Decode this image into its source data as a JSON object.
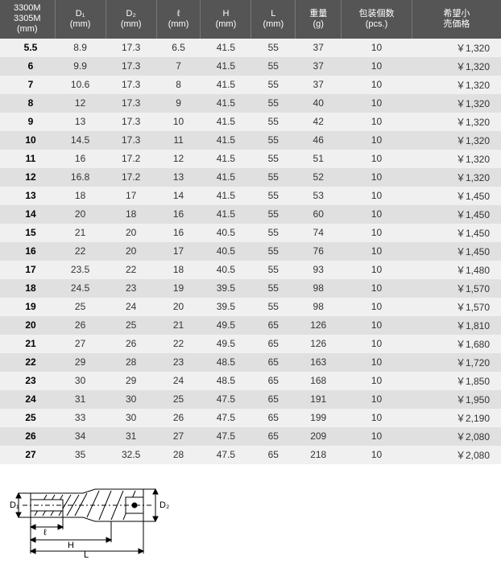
{
  "table": {
    "header_bg": "#555555",
    "header_text_color": "#ffffff",
    "row_odd_bg": "#f0f0f0",
    "row_even_bg": "#e0e0e0",
    "cell_text_color": "#333333",
    "size_text_color": "#000000",
    "columns": [
      {
        "label_line1": "3300M",
        "label_line2": "3305M",
        "label_line3": "(mm)"
      },
      {
        "label_line1": "D₁",
        "label_line2": "(mm)"
      },
      {
        "label_line1": "D₂",
        "label_line2": "(mm)"
      },
      {
        "label_line1": "ℓ",
        "label_line2": "(mm)"
      },
      {
        "label_line1": "H",
        "label_line2": "(mm)"
      },
      {
        "label_line1": "L",
        "label_line2": "(mm)"
      },
      {
        "label_line1": "重量",
        "label_line2": "(g)"
      },
      {
        "label_line1": "包装個数",
        "label_line2": "(pcs.)"
      },
      {
        "label_line1": "希望小",
        "label_line2": "売価格"
      }
    ],
    "rows": [
      {
        "size": "5.5",
        "d1": "8.9",
        "d2": "17.3",
        "l": "6.5",
        "h": "41.5",
        "L": "55",
        "weight": "37",
        "pcs": "10",
        "price": "￥1,320"
      },
      {
        "size": "6",
        "d1": "9.9",
        "d2": "17.3",
        "l": "7",
        "h": "41.5",
        "L": "55",
        "weight": "37",
        "pcs": "10",
        "price": "￥1,320"
      },
      {
        "size": "7",
        "d1": "10.6",
        "d2": "17.3",
        "l": "8",
        "h": "41.5",
        "L": "55",
        "weight": "37",
        "pcs": "10",
        "price": "￥1,320"
      },
      {
        "size": "8",
        "d1": "12",
        "d2": "17.3",
        "l": "9",
        "h": "41.5",
        "L": "55",
        "weight": "40",
        "pcs": "10",
        "price": "￥1,320"
      },
      {
        "size": "9",
        "d1": "13",
        "d2": "17.3",
        "l": "10",
        "h": "41.5",
        "L": "55",
        "weight": "42",
        "pcs": "10",
        "price": "￥1,320"
      },
      {
        "size": "10",
        "d1": "14.5",
        "d2": "17.3",
        "l": "11",
        "h": "41.5",
        "L": "55",
        "weight": "46",
        "pcs": "10",
        "price": "￥1,320"
      },
      {
        "size": "11",
        "d1": "16",
        "d2": "17.2",
        "l": "12",
        "h": "41.5",
        "L": "55",
        "weight": "51",
        "pcs": "10",
        "price": "￥1,320"
      },
      {
        "size": "12",
        "d1": "16.8",
        "d2": "17.2",
        "l": "13",
        "h": "41.5",
        "L": "55",
        "weight": "52",
        "pcs": "10",
        "price": "￥1,320"
      },
      {
        "size": "13",
        "d1": "18",
        "d2": "17",
        "l": "14",
        "h": "41.5",
        "L": "55",
        "weight": "53",
        "pcs": "10",
        "price": "￥1,450"
      },
      {
        "size": "14",
        "d1": "20",
        "d2": "18",
        "l": "16",
        "h": "41.5",
        "L": "55",
        "weight": "60",
        "pcs": "10",
        "price": "￥1,450"
      },
      {
        "size": "15",
        "d1": "21",
        "d2": "20",
        "l": "16",
        "h": "40.5",
        "L": "55",
        "weight": "74",
        "pcs": "10",
        "price": "￥1,450"
      },
      {
        "size": "16",
        "d1": "22",
        "d2": "20",
        "l": "17",
        "h": "40.5",
        "L": "55",
        "weight": "76",
        "pcs": "10",
        "price": "￥1,450"
      },
      {
        "size": "17",
        "d1": "23.5",
        "d2": "22",
        "l": "18",
        "h": "40.5",
        "L": "55",
        "weight": "93",
        "pcs": "10",
        "price": "￥1,480"
      },
      {
        "size": "18",
        "d1": "24.5",
        "d2": "23",
        "l": "19",
        "h": "39.5",
        "L": "55",
        "weight": "98",
        "pcs": "10",
        "price": "￥1,570"
      },
      {
        "size": "19",
        "d1": "25",
        "d2": "24",
        "l": "20",
        "h": "39.5",
        "L": "55",
        "weight": "98",
        "pcs": "10",
        "price": "￥1,570"
      },
      {
        "size": "20",
        "d1": "26",
        "d2": "25",
        "l": "21",
        "h": "49.5",
        "L": "65",
        "weight": "126",
        "pcs": "10",
        "price": "￥1,810"
      },
      {
        "size": "21",
        "d1": "27",
        "d2": "26",
        "l": "22",
        "h": "49.5",
        "L": "65",
        "weight": "126",
        "pcs": "10",
        "price": "￥1,680"
      },
      {
        "size": "22",
        "d1": "29",
        "d2": "28",
        "l": "23",
        "h": "48.5",
        "L": "65",
        "weight": "163",
        "pcs": "10",
        "price": "￥1,720"
      },
      {
        "size": "23",
        "d1": "30",
        "d2": "29",
        "l": "24",
        "h": "48.5",
        "L": "65",
        "weight": "168",
        "pcs": "10",
        "price": "￥1,850"
      },
      {
        "size": "24",
        "d1": "31",
        "d2": "30",
        "l": "25",
        "h": "47.5",
        "L": "65",
        "weight": "191",
        "pcs": "10",
        "price": "￥1,950"
      },
      {
        "size": "25",
        "d1": "33",
        "d2": "30",
        "l": "26",
        "h": "47.5",
        "L": "65",
        "weight": "199",
        "pcs": "10",
        "price": "￥2,190"
      },
      {
        "size": "26",
        "d1": "34",
        "d2": "31",
        "l": "27",
        "h": "47.5",
        "L": "65",
        "weight": "209",
        "pcs": "10",
        "price": "￥2,080"
      },
      {
        "size": "27",
        "d1": "35",
        "d2": "32.5",
        "l": "28",
        "h": "47.5",
        "L": "65",
        "weight": "218",
        "pcs": "10",
        "price": "￥2,080"
      }
    ]
  },
  "diagram": {
    "labels": {
      "d1": "D₁",
      "d2": "D₂",
      "l": "ℓ",
      "h": "H",
      "L": "L"
    },
    "stroke_color": "#000000",
    "stroke_width": 1
  }
}
